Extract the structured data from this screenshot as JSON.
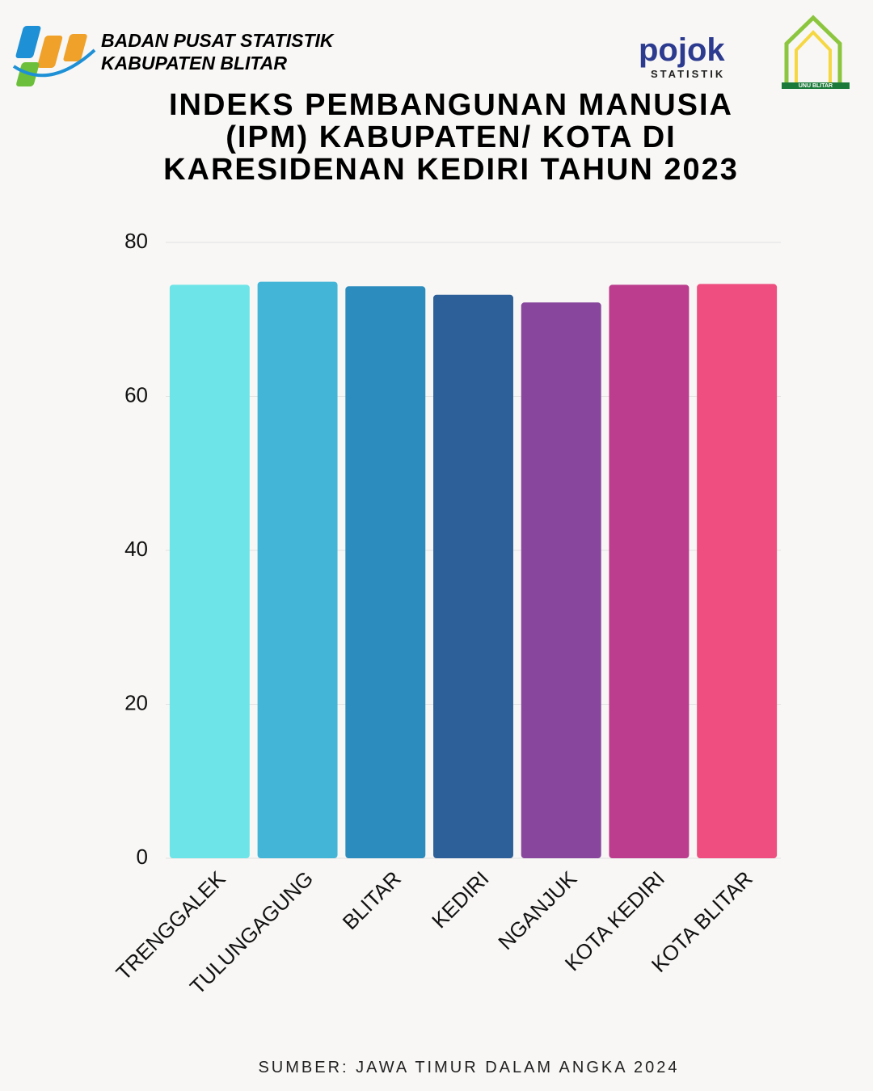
{
  "header": {
    "org_line1": "BADAN PUSAT STATISTIK",
    "org_line2": "KABUPATEN BLITAR",
    "logo2_text": "pojok",
    "logo2_sub": "STATISTIK",
    "logo3_text": "UNU BLITAR"
  },
  "chart_data": {
    "type": "bar",
    "title": "INDEKS PEMBANGUNAN MANUSIA (IPM) KABUPATEN/ KOTA DI KARESIDENAN KEDIRI TAHUN 2023",
    "categories": [
      "TRENGGALEK",
      "TULUNGAGUNG",
      "BLITAR",
      "KEDIRI",
      "NGANJUK",
      "KOTA KEDIRI",
      "KOTA BLITAR"
    ],
    "values": [
      74.5,
      74.9,
      74.3,
      73.2,
      72.2,
      74.5,
      74.6
    ],
    "colors": [
      "#6de4e8",
      "#43b6d8",
      "#2c8cbd",
      "#2d5f98",
      "#88479c",
      "#bc3d8e",
      "#ef4e80"
    ],
    "ylim": [
      0,
      80
    ],
    "yticks": [
      0,
      20,
      40,
      60,
      80
    ],
    "grid": true
  },
  "footer": {
    "source": "SUMBER: JAWA TIMUR DALAM ANGKA 2024"
  }
}
